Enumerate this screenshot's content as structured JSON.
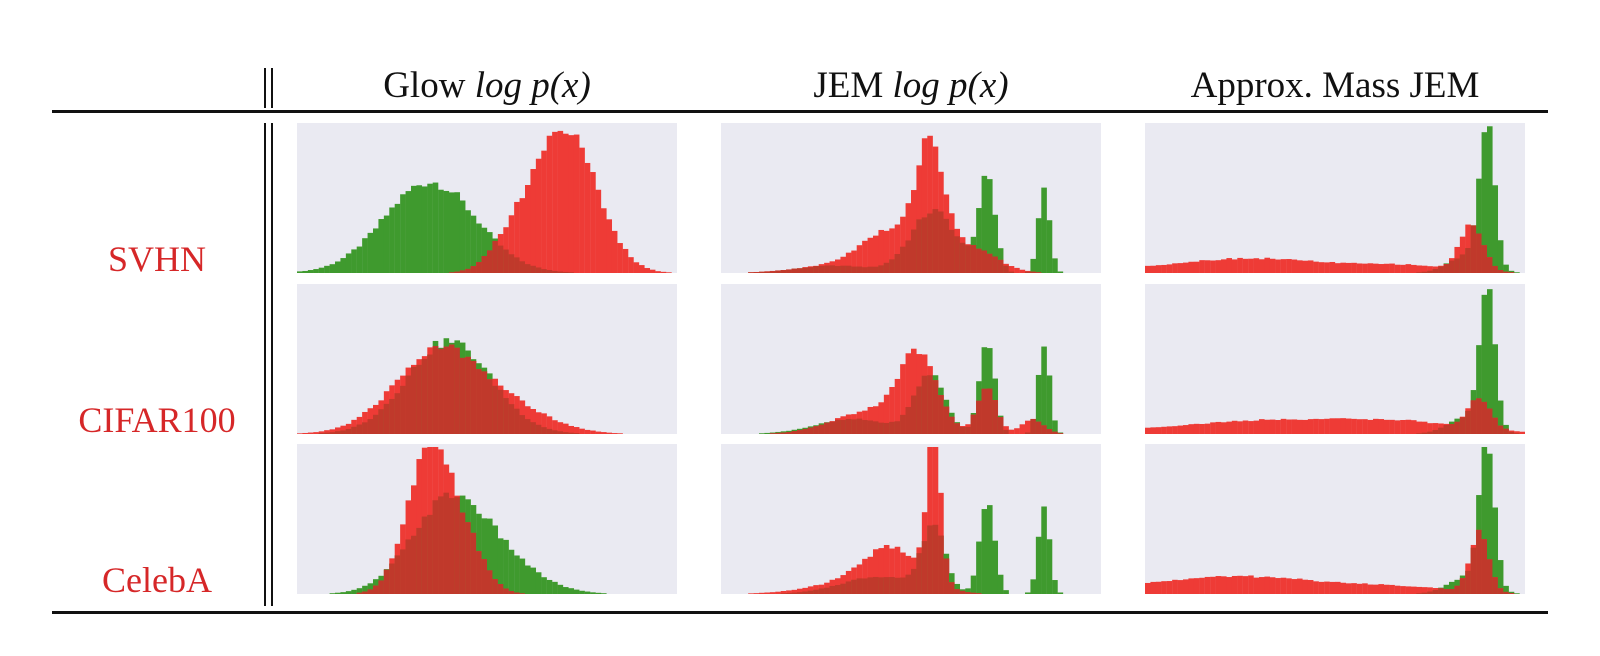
{
  "table": {
    "column_headers": [
      {
        "prefix": "Glow",
        "formula": "log p(x)"
      },
      {
        "prefix": "JEM",
        "formula": "log p(x)"
      },
      {
        "prefix": "Approx. Mass JEM",
        "formula": ""
      }
    ],
    "row_labels": [
      "SVHN",
      "CIFAR100",
      "CelebA"
    ]
  },
  "colors": {
    "in_distribution": "#3f9a2e",
    "out_of_distribution": "#ee3b36",
    "overlap": "#c0392b",
    "panel_background": "#eaeaf2",
    "row_label": "#d62728"
  },
  "chart_data": {
    "type": "histogram-grid",
    "grid": false,
    "legend": "none",
    "bins": 70,
    "x_range": [
      0,
      1
    ],
    "note_components": "Each histogram density is a sum of Gaussian bumps [center, width, height] over the normalized x_range; heights are relative densities (tallest bar of each panel = 1).",
    "panels": [
      {
        "row": "SVHN",
        "column": 0,
        "in_distribution": [
          [
            0.35,
            0.12,
            0.62
          ]
        ],
        "out_of_distribution": [
          [
            0.7,
            0.085,
            1.0
          ],
          [
            0.55,
            0.05,
            0.12
          ]
        ]
      },
      {
        "row": "SVHN",
        "column": 1,
        "in_distribution": [
          [
            0.56,
            0.06,
            0.42
          ],
          [
            0.7,
            0.022,
            0.62
          ],
          [
            0.85,
            0.015,
            0.58
          ],
          [
            0.3,
            0.1,
            0.05
          ]
        ],
        "out_of_distribution": [
          [
            0.55,
            0.035,
            0.75
          ],
          [
            0.45,
            0.08,
            0.28
          ],
          [
            0.65,
            0.07,
            0.18
          ],
          [
            0.28,
            0.1,
            0.04
          ]
        ]
      },
      {
        "row": "SVHN",
        "column": 2,
        "in_distribution": [
          [
            0.9,
            0.02,
            0.96
          ],
          [
            0.85,
            0.05,
            0.12
          ]
        ],
        "out_of_distribution": [
          [
            0.28,
            0.22,
            0.1
          ],
          [
            0.86,
            0.03,
            0.32
          ],
          [
            0.7,
            0.12,
            0.04
          ]
        ]
      },
      {
        "row": "CIFAR100",
        "column": 0,
        "in_distribution": [
          [
            0.4,
            0.11,
            0.63
          ]
        ],
        "out_of_distribution": [
          [
            0.38,
            0.12,
            0.58
          ],
          [
            0.6,
            0.1,
            0.1
          ]
        ]
      },
      {
        "row": "CIFAR100",
        "column": 1,
        "in_distribution": [
          [
            0.55,
            0.04,
            0.4
          ],
          [
            0.7,
            0.02,
            0.65
          ],
          [
            0.85,
            0.015,
            0.6
          ],
          [
            0.35,
            0.1,
            0.1
          ]
        ],
        "out_of_distribution": [
          [
            0.52,
            0.05,
            0.48
          ],
          [
            0.4,
            0.1,
            0.16
          ],
          [
            0.7,
            0.025,
            0.32
          ],
          [
            0.82,
            0.03,
            0.1
          ]
        ]
      },
      {
        "row": "CIFAR100",
        "column": 2,
        "in_distribution": [
          [
            0.9,
            0.02,
            0.96
          ],
          [
            0.85,
            0.05,
            0.12
          ]
        ],
        "out_of_distribution": [
          [
            0.4,
            0.3,
            0.1
          ],
          [
            0.88,
            0.03,
            0.2
          ],
          [
            0.7,
            0.12,
            0.03
          ]
        ]
      },
      {
        "row": "CelebA",
        "column": 0,
        "in_distribution": [
          [
            0.4,
            0.1,
            0.62
          ],
          [
            0.55,
            0.1,
            0.15
          ]
        ],
        "out_of_distribution": [
          [
            0.35,
            0.06,
            0.96
          ],
          [
            0.45,
            0.05,
            0.25
          ]
        ]
      },
      {
        "row": "CelebA",
        "column": 1,
        "in_distribution": [
          [
            0.56,
            0.03,
            0.44
          ],
          [
            0.7,
            0.02,
            0.62
          ],
          [
            0.85,
            0.015,
            0.6
          ],
          [
            0.42,
            0.1,
            0.12
          ]
        ],
        "out_of_distribution": [
          [
            0.56,
            0.018,
            1.0
          ],
          [
            0.45,
            0.08,
            0.3
          ],
          [
            0.3,
            0.1,
            0.05
          ]
        ]
      },
      {
        "row": "CelebA",
        "column": 2,
        "in_distribution": [
          [
            0.9,
            0.02,
            0.96
          ],
          [
            0.85,
            0.05,
            0.12
          ]
        ],
        "out_of_distribution": [
          [
            0.25,
            0.25,
            0.12
          ],
          [
            0.88,
            0.025,
            0.4
          ],
          [
            0.7,
            0.12,
            0.03
          ]
        ]
      }
    ]
  }
}
